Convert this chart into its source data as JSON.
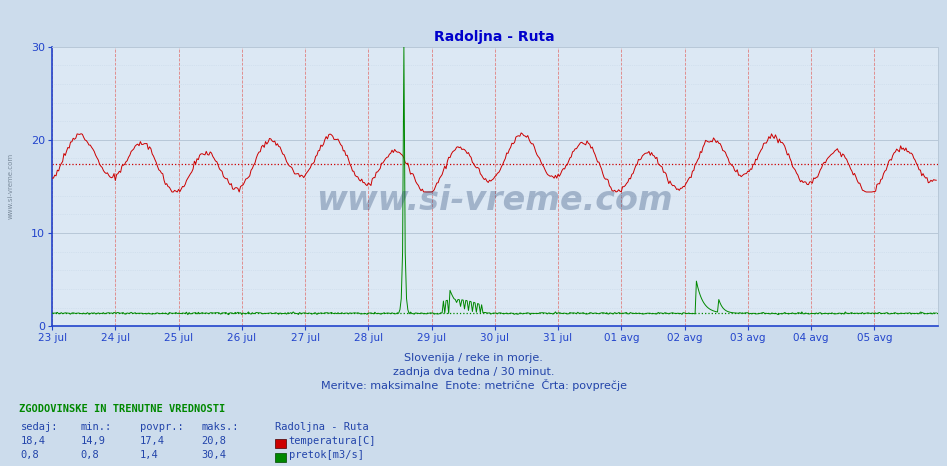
{
  "title": "Radoljna - Ruta",
  "title_color": "#0000cc",
  "bg_color": "#ccdcec",
  "plot_bg_color": "#dce8f4",
  "grid_major_color": "#b8c8d8",
  "grid_minor_color": "#c8d8e8",
  "vgrid_color": "#e08080",
  "temp_color": "#cc0000",
  "flow_color": "#008800",
  "avg_color_temp": "#cc0000",
  "avg_color_flow": "#008800",
  "axis_color": "#2244cc",
  "tick_color": "#2244cc",
  "text_color": "#2244aa",
  "footer_green": "#008800",
  "ylim": [
    0,
    30
  ],
  "yticks": [
    0,
    10,
    20,
    30
  ],
  "n_days": 14,
  "pts_per_day": 48,
  "temp_avg": 17.4,
  "flow_avg": 1.4,
  "temp_min": 14.9,
  "temp_max": 20.8,
  "flow_min": 0.8,
  "flow_max": 30.4,
  "temp_current": 18.4,
  "flow_current": 0.8,
  "x_labels": [
    "23 jul",
    "24 jul",
    "25 jul",
    "26 jul",
    "27 jul",
    "28 jul",
    "29 jul",
    "30 jul",
    "31 jul",
    "01 avg",
    "02 avg",
    "03 avg",
    "04 avg",
    "05 avg"
  ],
  "subtitle1": "Slovenija / reke in morje.",
  "subtitle2": "zadnja dva tedna / 30 minut.",
  "subtitle3": "Meritve: maksimalne  Enote: metrične  Črta: povprečje",
  "footer_title": "ZGODOVINSKE IN TRENUTNE VREDNOSTI",
  "footer_col1": "sedaj:",
  "footer_col2": "min.:",
  "footer_col3": "povpr.:",
  "footer_col4": "maks.:",
  "footer_station": "Radoljna - Ruta",
  "footer_label1": "temperatura[C]",
  "footer_label2": "pretok[m3/s]",
  "watermark": "www.si-vreme.com"
}
